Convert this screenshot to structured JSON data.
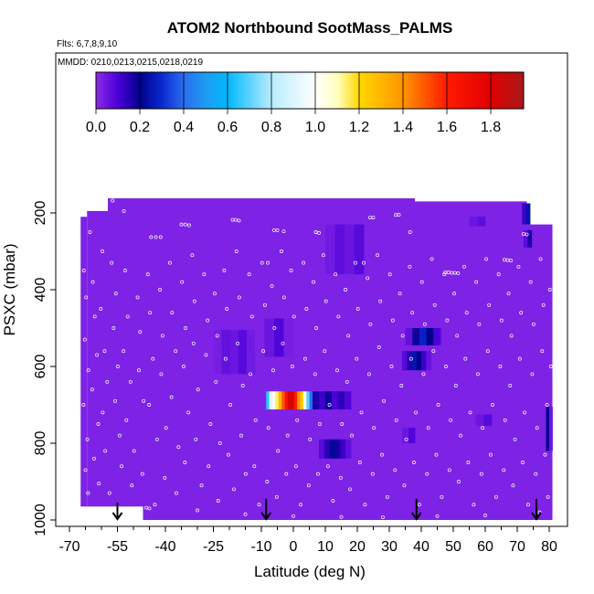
{
  "chart_data": {
    "type": "heatmap",
    "title": "ATOM2 Northbound SootMass_PALMS",
    "subtitle_flights": "Flts: 6,7,8,9,10",
    "subtitle_dates": "MMDD: 0210,0213,0215,0218,0219",
    "xlabel": "Latitude (deg N)",
    "ylabel": "PSXC (mbar)",
    "xlim": [
      -70,
      82
    ],
    "ylim": [
      1000,
      80
    ],
    "y_reversed": true,
    "x_ticks": [
      -70,
      -55,
      -40,
      -25,
      -10,
      0,
      10,
      20,
      30,
      40,
      50,
      60,
      70,
      80
    ],
    "x_minor_ticks": [
      -65,
      -60,
      -50,
      -45,
      -35,
      -30,
      -20,
      -15,
      -5,
      5,
      15,
      25,
      35,
      45,
      55,
      65,
      75
    ],
    "y_ticks": [
      200,
      400,
      600,
      800,
      1000
    ],
    "colorbar": {
      "min": 0.0,
      "max": 1.95,
      "ticks": [
        0.0,
        0.2,
        0.4,
        0.6,
        0.8,
        1.0,
        1.2,
        1.4,
        1.6,
        1.8
      ],
      "tick_labels": [
        "0.0",
        "0.2",
        "0.4",
        "0.6",
        "0.8",
        "1.0",
        "1.2",
        "1.4",
        "1.6",
        "1.8"
      ],
      "stops": [
        [
          0.0,
          "#8b2be8"
        ],
        [
          0.1,
          "#4b00d8"
        ],
        [
          0.2,
          "#00008c"
        ],
        [
          0.3,
          "#0a28d0"
        ],
        [
          0.4,
          "#2a6cf0"
        ],
        [
          0.5,
          "#1e9cf0"
        ],
        [
          0.6,
          "#00b8ff"
        ],
        [
          0.8,
          "#b8ecff"
        ],
        [
          1.0,
          "#ffffff"
        ],
        [
          1.1,
          "#ffffc0"
        ],
        [
          1.2,
          "#ffd800"
        ],
        [
          1.4,
          "#ff9400"
        ],
        [
          1.6,
          "#ff1a00"
        ],
        [
          1.8,
          "#e00000"
        ],
        [
          1.95,
          "#a81818"
        ]
      ]
    },
    "background_value": 0.02,
    "coverage": [
      {
        "lat": [
          -66.5,
          -64.5
        ],
        "p": [
          210,
          965
        ]
      },
      {
        "lat": [
          -64.5,
          -58
        ],
        "p": [
          195,
          965
        ]
      },
      {
        "lat": [
          -58,
          -47
        ],
        "p": [
          162,
          965
        ]
      },
      {
        "lat": [
          -47,
          38
        ],
        "p": [
          162,
          1000
        ]
      },
      {
        "lat": [
          38,
          73
        ],
        "p": [
          170,
          1000
        ]
      },
      {
        "lat": [
          73,
          81
        ],
        "p": [
          230,
          1000
        ]
      }
    ],
    "patches": [
      {
        "lat": [
          -8.5,
          6
        ],
        "p": [
          665,
          712
        ],
        "values": [
          0.65,
          0.9,
          1.0,
          1.15,
          1.3,
          1.5,
          1.65,
          1.8,
          1.85,
          1.6,
          1.4,
          1.25,
          1.05,
          0.7,
          0.4
        ]
      },
      {
        "lat": [
          6,
          18
        ],
        "p": [
          665,
          712
        ],
        "values": [
          0.16,
          0.12,
          0.18,
          0.1,
          0.14,
          0.09
        ]
      },
      {
        "lat": [
          8,
          18
        ],
        "p": [
          790,
          840
        ],
        "values": [
          0.08,
          0.14,
          0.22,
          0.17,
          0.12,
          0.07
        ]
      },
      {
        "lat": [
          34,
          43
        ],
        "p": [
          560,
          610
        ],
        "values": [
          0.08,
          0.15,
          0.25,
          0.2,
          0.12,
          0.06
        ]
      },
      {
        "lat": [
          35,
          46
        ],
        "p": [
          500,
          545
        ],
        "values": [
          0.06,
          0.18,
          0.28,
          0.2,
          0.1
        ]
      },
      {
        "lat": [
          71.5,
          74
        ],
        "p": [
          175,
          230
        ],
        "values": [
          0.12,
          0.25
        ]
      },
      {
        "lat": [
          72,
          74.5
        ],
        "p": [
          245,
          290
        ],
        "values": [
          0.08,
          0.16
        ]
      },
      {
        "lat": [
          79,
          81
        ],
        "p": [
          705,
          820
        ],
        "values": [
          0.2,
          0.05
        ]
      },
      {
        "lat": [
          -25,
          -12
        ],
        "p": [
          505,
          620
        ],
        "values": [
          0.03,
          0.06,
          0.05,
          0.08,
          0.04
        ]
      },
      {
        "lat": [
          -12,
          0
        ],
        "p": [
          475,
          575
        ],
        "values": [
          0.02,
          0.05,
          0.09,
          0.03
        ]
      },
      {
        "lat": [
          10,
          22
        ],
        "p": [
          230,
          360
        ],
        "values": [
          0.04,
          0.07,
          0.05,
          0.08
        ]
      },
      {
        "lat": [
          57,
          62
        ],
        "p": [
          725,
          755
        ],
        "values": [
          0.05,
          0.08
        ]
      },
      {
        "lat": [
          55,
          60
        ],
        "p": [
          210,
          235
        ],
        "values": [
          0.05,
          0.07
        ]
      },
      {
        "lat": [
          34,
          38
        ],
        "p": [
          760,
          800
        ],
        "values": [
          0.05,
          0.09
        ]
      }
    ],
    "sample_points": [
      [
        -65.5,
        350
      ],
      [
        -64.8,
        420
      ],
      [
        -65.2,
        530
      ],
      [
        -64.1,
        610
      ],
      [
        -65.6,
        700
      ],
      [
        -64.4,
        790
      ],
      [
        -65.0,
        870
      ],
      [
        -64.2,
        930
      ],
      [
        -63.6,
        250
      ],
      [
        -62.7,
        380
      ],
      [
        -62.1,
        470
      ],
      [
        -61.4,
        570
      ],
      [
        -62.9,
        660
      ],
      [
        -61.0,
        750
      ],
      [
        -62.3,
        840
      ],
      [
        -60.8,
        905
      ],
      [
        -59.7,
        300
      ],
      [
        -60.2,
        450
      ],
      [
        -59.0,
        560
      ],
      [
        -58.2,
        640
      ],
      [
        -59.6,
        720
      ],
      [
        -58.8,
        820
      ],
      [
        -57.5,
        930
      ],
      [
        -56.8,
        330
      ],
      [
        -55.5,
        410
      ],
      [
        -56.2,
        500
      ],
      [
        -54.9,
        600
      ],
      [
        -55.7,
        690
      ],
      [
        -54.3,
        780
      ],
      [
        -53.7,
        860
      ],
      [
        -52.6,
        350
      ],
      [
        -51.8,
        470
      ],
      [
        -53.1,
        560
      ],
      [
        -50.9,
        640
      ],
      [
        -52.2,
        740
      ],
      [
        -49.8,
        820
      ],
      [
        -50.5,
        910
      ],
      [
        -48.7,
        420
      ],
      [
        -47.9,
        510
      ],
      [
        -48.3,
        610
      ],
      [
        -46.8,
        690
      ],
      [
        -47.2,
        880
      ],
      [
        -45.5,
        360
      ],
      [
        -44.8,
        460
      ],
      [
        -43.9,
        580
      ],
      [
        -45.1,
        700
      ],
      [
        -42.6,
        790
      ],
      [
        -43.3,
        960
      ],
      [
        -41.7,
        400
      ],
      [
        -40.9,
        520
      ],
      [
        -41.3,
        620
      ],
      [
        -39.8,
        760
      ],
      [
        -40.2,
        890
      ],
      [
        -38.6,
        330
      ],
      [
        -37.9,
        460
      ],
      [
        -36.8,
        560
      ],
      [
        -38.1,
        680
      ],
      [
        -35.9,
        810
      ],
      [
        -36.6,
        930
      ],
      [
        -34.8,
        380
      ],
      [
        -33.7,
        500
      ],
      [
        -34.3,
        600
      ],
      [
        -32.8,
        720
      ],
      [
        -33.9,
        850
      ],
      [
        -31.6,
        310
      ],
      [
        -30.9,
        430
      ],
      [
        -31.2,
        540
      ],
      [
        -29.8,
        660
      ],
      [
        -30.5,
        790
      ],
      [
        -28.7,
        910
      ],
      [
        -27.9,
        360
      ],
      [
        -26.8,
        480
      ],
      [
        -27.3,
        570
      ],
      [
        -25.9,
        750
      ],
      [
        -26.5,
        860
      ],
      [
        -24.6,
        410
      ],
      [
        -23.8,
        520
      ],
      [
        -24.2,
        640
      ],
      [
        -22.9,
        800
      ],
      [
        -23.5,
        950
      ],
      [
        -21.6,
        350
      ],
      [
        -20.8,
        450
      ],
      [
        -21.2,
        580
      ],
      [
        -19.7,
        700
      ],
      [
        -20.3,
        830
      ],
      [
        -18.6,
        920
      ],
      [
        -17.8,
        300
      ],
      [
        -16.9,
        420
      ],
      [
        -17.4,
        540
      ],
      [
        -15.8,
        650
      ],
      [
        -16.3,
        780
      ],
      [
        -14.9,
        880
      ],
      [
        -13.8,
        360
      ],
      [
        -12.9,
        470
      ],
      [
        -13.4,
        620
      ],
      [
        -11.8,
        740
      ],
      [
        -12.2,
        860
      ],
      [
        -10.7,
        960
      ],
      [
        -9.8,
        330
      ],
      [
        -8.9,
        440
      ],
      [
        -9.4,
        560
      ],
      [
        -7.8,
        760
      ],
      [
        -8.2,
        900
      ],
      [
        -6.7,
        390
      ],
      [
        -5.9,
        500
      ],
      [
        -6.3,
        610
      ],
      [
        -4.8,
        820
      ],
      [
        -5.2,
        940
      ],
      [
        -3.7,
        300
      ],
      [
        -2.9,
        420
      ],
      [
        -3.3,
        540
      ],
      [
        -1.8,
        780
      ],
      [
        -2.2,
        880
      ],
      [
        -0.7,
        350
      ],
      [
        0.2,
        470
      ],
      [
        -0.3,
        600
      ],
      [
        1.2,
        740
      ],
      [
        0.8,
        860
      ],
      [
        2.3,
        960
      ],
      [
        3.2,
        330
      ],
      [
        4.1,
        450
      ],
      [
        3.7,
        580
      ],
      [
        5.2,
        790
      ],
      [
        4.8,
        910
      ],
      [
        6.3,
        380
      ],
      [
        7.2,
        500
      ],
      [
        6.8,
        620
      ],
      [
        8.3,
        750
      ],
      [
        7.7,
        880
      ],
      [
        9.4,
        310
      ],
      [
        10.2,
        430
      ],
      [
        9.8,
        560
      ],
      [
        11.3,
        700
      ],
      [
        10.8,
        860
      ],
      [
        12.4,
        950
      ],
      [
        13.2,
        360
      ],
      [
        14.1,
        470
      ],
      [
        13.7,
        610
      ],
      [
        15.2,
        750
      ],
      [
        14.8,
        890
      ],
      [
        16.3,
        400
      ],
      [
        17.2,
        520
      ],
      [
        16.8,
        640
      ],
      [
        18.3,
        780
      ],
      [
        17.7,
        920
      ],
      [
        19.4,
        330
      ],
      [
        20.2,
        450
      ],
      [
        19.8,
        580
      ],
      [
        21.3,
        720
      ],
      [
        20.8,
        850
      ],
      [
        22.4,
        960
      ],
      [
        23.2,
        370
      ],
      [
        24.1,
        490
      ],
      [
        23.7,
        620
      ],
      [
        25.2,
        760
      ],
      [
        24.8,
        880
      ],
      [
        26.3,
        310
      ],
      [
        27.2,
        430
      ],
      [
        26.8,
        550
      ],
      [
        28.3,
        690
      ],
      [
        27.7,
        830
      ],
      [
        29.4,
        940
      ],
      [
        30.2,
        360
      ],
      [
        31.1,
        480
      ],
      [
        30.7,
        600
      ],
      [
        32.2,
        740
      ],
      [
        31.8,
        870
      ],
      [
        33.3,
        410
      ],
      [
        34.2,
        520
      ],
      [
        33.8,
        650
      ],
      [
        35.3,
        790
      ],
      [
        34.7,
        910
      ],
      [
        36.4,
        340
      ],
      [
        37.2,
        460
      ],
      [
        36.8,
        580
      ],
      [
        38.3,
        720
      ],
      [
        37.7,
        850
      ],
      [
        39.4,
        960
      ],
      [
        40.2,
        380
      ],
      [
        41.1,
        490
      ],
      [
        40.7,
        620
      ],
      [
        42.2,
        760
      ],
      [
        41.8,
        880
      ],
      [
        43.3,
        320
      ],
      [
        44.2,
        440
      ],
      [
        43.8,
        560
      ],
      [
        45.3,
        700
      ],
      [
        44.7,
        830
      ],
      [
        46.4,
        940
      ],
      [
        47.2,
        360
      ],
      [
        48.1,
        480
      ],
      [
        47.7,
        600
      ],
      [
        49.2,
        740
      ],
      [
        48.8,
        870
      ],
      [
        50.3,
        410
      ],
      [
        51.2,
        520
      ],
      [
        50.8,
        650
      ],
      [
        52.3,
        780
      ],
      [
        51.7,
        900
      ],
      [
        53.4,
        340
      ],
      [
        54.2,
        460
      ],
      [
        53.8,
        580
      ],
      [
        55.3,
        720
      ],
      [
        54.7,
        850
      ],
      [
        56.4,
        960
      ],
      [
        57.2,
        380
      ],
      [
        58.1,
        490
      ],
      [
        57.7,
        620
      ],
      [
        59.2,
        760
      ],
      [
        58.8,
        880
      ],
      [
        60.3,
        320
      ],
      [
        61.2,
        440
      ],
      [
        60.8,
        560
      ],
      [
        62.3,
        700
      ],
      [
        61.7,
        830
      ],
      [
        63.4,
        940
      ],
      [
        64.2,
        360
      ],
      [
        65.1,
        480
      ],
      [
        64.7,
        600
      ],
      [
        66.2,
        740
      ],
      [
        65.8,
        870
      ],
      [
        67.3,
        410
      ],
      [
        68.2,
        520
      ],
      [
        67.8,
        650
      ],
      [
        69.3,
        790
      ],
      [
        68.7,
        910
      ],
      [
        70.4,
        340
      ],
      [
        71.2,
        460
      ],
      [
        70.8,
        580
      ],
      [
        72.3,
        720
      ],
      [
        71.7,
        850
      ],
      [
        73.4,
        960
      ],
      [
        74.2,
        380
      ],
      [
        75.1,
        490
      ],
      [
        74.7,
        620
      ],
      [
        76.2,
        760
      ],
      [
        75.8,
        880
      ],
      [
        77.3,
        320
      ],
      [
        78.2,
        440
      ],
      [
        77.8,
        560
      ],
      [
        79.3,
        700
      ],
      [
        78.7,
        830
      ],
      [
        79.6,
        940
      ],
      [
        80.2,
        400
      ],
      [
        80.5,
        600
      ],
      [
        -35.0,
        230
      ],
      [
        -33.8,
        230
      ],
      [
        -32.6,
        232
      ],
      [
        -19.0,
        218
      ],
      [
        -18.0,
        218
      ],
      [
        -17.0,
        220
      ],
      [
        -6.0,
        245
      ],
      [
        -5.0,
        245
      ],
      [
        7.0,
        250
      ],
      [
        8.0,
        252
      ],
      [
        24.0,
        212
      ],
      [
        25.0,
        212
      ],
      [
        32.0,
        205
      ],
      [
        33.0,
        205
      ],
      [
        47.5,
        355
      ],
      [
        48.5,
        355
      ],
      [
        49.5,
        356
      ],
      [
        50.5,
        356
      ],
      [
        51.5,
        357
      ],
      [
        66.0,
        322
      ],
      [
        67.0,
        323
      ],
      [
        68.0,
        324
      ],
      [
        72.0,
        255
      ],
      [
        73.0,
        256
      ],
      [
        -46.0,
        968
      ],
      [
        -45.0,
        970
      ],
      [
        -30.0,
        975
      ],
      [
        -15.0,
        985
      ],
      [
        0.0,
        990
      ],
      [
        15.0,
        992
      ],
      [
        28.0,
        993
      ],
      [
        45.0,
        990
      ],
      [
        60.0,
        988
      ],
      [
        77.0,
        980
      ],
      [
        -58.5,
        175
      ],
      [
        -56.5,
        168
      ],
      [
        -53.0,
        195
      ],
      [
        -43.0,
        263
      ],
      [
        -41.5,
        263
      ],
      [
        -44.5,
        263
      ],
      [
        -8.0,
        330
      ],
      [
        -3.0,
        248
      ],
      [
        22.0,
        330
      ],
      [
        36.5,
        250
      ]
    ],
    "profile_arrows": [
      {
        "lat": -55,
        "p_top": 955,
        "p_bottom": 1000
      },
      {
        "lat": -8.5,
        "p_top": 945,
        "p_bottom": 1000
      },
      {
        "lat": 38.5,
        "p_top": 945,
        "p_bottom": 1000
      },
      {
        "lat": 76,
        "p_top": 945,
        "p_bottom": 1000
      }
    ]
  }
}
